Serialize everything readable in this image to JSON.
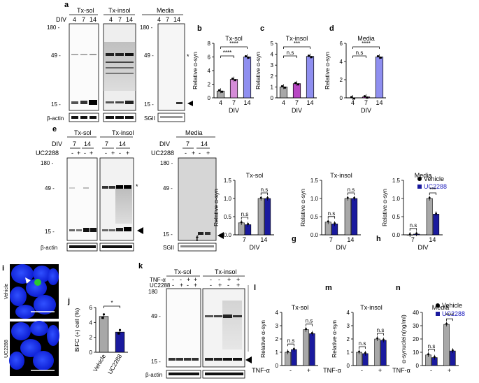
{
  "panel_letters": {
    "a": "a",
    "b": "b",
    "c": "c",
    "d": "d",
    "e": "e",
    "f": "f",
    "g": "g",
    "h": "h",
    "i": "i",
    "j": "j",
    "k": "k",
    "l": "l",
    "m": "m",
    "n": "n"
  },
  "common": {
    "div_label": "DIV",
    "relative_asyn": "Relative α-syn",
    "actin": "β-actin",
    "sgii": "SGII",
    "uc2288": "UC2288",
    "tnf": "TNF-α",
    "minus": "-",
    "plus": "+",
    "ns": "n.s",
    "star1": "*",
    "star3": "***",
    "star4": "****"
  },
  "colors": {
    "grey": "#a8a8a8",
    "violet_light": "#d58cd8",
    "violet": "#b847c4",
    "lavender": "#8f8ff0",
    "navy": "#1a1a9e",
    "blue_text": "#1f1fbf",
    "micro_bg": "#000000",
    "nucleus": "#1a33ff",
    "green": "#29c92e"
  },
  "a": {
    "groups": [
      "Tx-sol",
      "Tx-insol",
      "Media"
    ],
    "div_values": [
      "4",
      "7",
      "14"
    ],
    "mw": [
      "180 -",
      "49 -",
      "15 -"
    ],
    "mw_media": [
      "180 -",
      "49 -",
      "15 -"
    ],
    "asterisk": "*"
  },
  "e": {
    "groups": [
      "Tx-sol",
      "Tx-insol",
      "Media"
    ],
    "div_values": [
      "7",
      "14"
    ],
    "signs": [
      "-",
      "+",
      "-",
      "+"
    ],
    "mw": [
      "180 -",
      "49 -",
      "15 -"
    ],
    "asterisk": "*"
  },
  "k": {
    "groups": [
      "Tx-sol",
      "Tx-insol"
    ],
    "tnf_signs": [
      "-",
      "-",
      "+",
      "+"
    ],
    "uc_signs": [
      "-",
      "+",
      "-",
      "+"
    ],
    "mw": [
      "180",
      "49 -",
      "15 -"
    ]
  },
  "i": {
    "vehicle": "Vehicle",
    "uc": "UC2288"
  },
  "j": {
    "ylabel": "BiFC (+) cell (%)",
    "categories": [
      "Vehicle",
      "UC2288"
    ],
    "yticks": [
      "0",
      "2",
      "4",
      "6"
    ],
    "sig": "*"
  },
  "legend": {
    "vehicle": "Vehicle",
    "uc": "UC2288"
  },
  "chart_data": [
    {
      "panel": "b",
      "type": "bar",
      "title": "Tx-sol",
      "xlabel": "DIV",
      "ylabel": "Relative α-syn",
      "categories": [
        "4",
        "7",
        "14"
      ],
      "values": [
        1.0,
        2.7,
        6.0
      ],
      "ylim": [
        0,
        8
      ],
      "yticks": [
        "0",
        "2",
        "4",
        "6",
        "8"
      ],
      "annotations": [
        "****",
        "****"
      ]
    },
    {
      "panel": "c",
      "type": "bar",
      "title": "Tx-insol",
      "xlabel": "DIV",
      "ylabel": "Relative α-syn",
      "categories": [
        "4",
        "7",
        "14"
      ],
      "values": [
        1.0,
        1.3,
        3.8
      ],
      "ylim": [
        0,
        5
      ],
      "yticks": [
        "0",
        "1",
        "2",
        "3",
        "4",
        "5"
      ],
      "annotations": [
        "n.s",
        "***"
      ]
    },
    {
      "panel": "d",
      "type": "bar",
      "title": "Media",
      "xlabel": "DIV",
      "ylabel": "Relative α-syn",
      "categories": [
        "4",
        "7",
        "14"
      ],
      "values": [
        0.0,
        0.1,
        4.5
      ],
      "ylim": [
        0,
        6
      ],
      "yticks": [
        "0",
        "2",
        "4",
        "6"
      ],
      "annotations": [
        "n.s",
        "****"
      ]
    },
    {
      "panel": "f",
      "type": "bar",
      "title": "Tx-sol",
      "xlabel": "DIV",
      "ylabel": "Relative α-syn",
      "categories": [
        "7",
        "14"
      ],
      "series": [
        {
          "name": "Vehicle",
          "values": [
            0.33,
            1.0
          ]
        },
        {
          "name": "UC2288",
          "values": [
            0.28,
            1.0
          ]
        }
      ],
      "ylim": [
        0,
        1.5
      ],
      "yticks": [
        "0.0",
        "0.5",
        "1.0",
        "1.5"
      ],
      "annotations": [
        "n.s",
        "n.s"
      ]
    },
    {
      "panel": "g",
      "type": "bar",
      "title": "Tx-insol",
      "xlabel": "DIV",
      "ylabel": "Relative α-syn",
      "categories": [
        "7",
        "14"
      ],
      "series": [
        {
          "name": "Vehicle",
          "values": [
            0.35,
            1.0
          ]
        },
        {
          "name": "UC2288",
          "values": [
            0.3,
            1.0
          ]
        }
      ],
      "ylim": [
        0,
        1.5
      ],
      "yticks": [
        "0.0",
        "0.5",
        "1.0",
        "1.5"
      ],
      "annotations": [
        "n.s",
        "n.s"
      ]
    },
    {
      "panel": "h",
      "type": "bar",
      "title": "Media",
      "xlabel": "DIV",
      "ylabel": "Relative α-syn",
      "categories": [
        "7",
        "14"
      ],
      "series": [
        {
          "name": "Vehicle",
          "values": [
            0.0,
            1.0
          ]
        },
        {
          "name": "UC2288",
          "values": [
            0.02,
            0.57
          ]
        }
      ],
      "ylim": [
        0,
        1.5
      ],
      "yticks": [
        "0.0",
        "0.5",
        "1.0",
        "1.5"
      ],
      "annotations": [
        "n.s",
        "***"
      ]
    },
    {
      "panel": "j",
      "type": "bar",
      "title": "",
      "xlabel": "",
      "ylabel": "BiFC (+) cell (%)",
      "categories": [
        "Vehicle",
        "UC2288"
      ],
      "values": [
        4.8,
        2.7
      ],
      "ylim": [
        0,
        6
      ],
      "yticks": [
        "0",
        "2",
        "4",
        "6"
      ],
      "annotations": [
        "*"
      ]
    },
    {
      "panel": "l",
      "type": "bar",
      "title": "Tx-sol",
      "xlabel": "TNF-α",
      "ylabel": "Relative α-syn",
      "categories": [
        "-",
        "+"
      ],
      "series": [
        {
          "name": "Vehicle",
          "values": [
            1.0,
            2.7
          ]
        },
        {
          "name": "UC2288",
          "values": [
            1.2,
            2.4
          ]
        }
      ],
      "ylim": [
        0,
        4
      ],
      "yticks": [
        "0",
        "1",
        "2",
        "3",
        "4"
      ],
      "annotations": [
        "n.s",
        "n.s"
      ]
    },
    {
      "panel": "m",
      "type": "bar",
      "title": "Tx-insol",
      "xlabel": "TNF-α",
      "ylabel": "Relative α-syn",
      "categories": [
        "-",
        "+"
      ],
      "series": [
        {
          "name": "Vehicle",
          "values": [
            1.0,
            2.0
          ]
        },
        {
          "name": "UC2288",
          "values": [
            0.9,
            1.9
          ]
        }
      ],
      "ylim": [
        0,
        4
      ],
      "yticks": [
        "0",
        "1",
        "2",
        "3",
        "4"
      ],
      "annotations": [
        "n.s",
        "n.s"
      ]
    },
    {
      "panel": "n",
      "type": "bar",
      "title": "Media",
      "xlabel": "TNF-α",
      "ylabel": "α-synuclein(ng/ml)",
      "categories": [
        "-",
        "+"
      ],
      "series": [
        {
          "name": "Vehicle",
          "values": [
            8,
            31
          ]
        },
        {
          "name": "UC2288",
          "values": [
            6,
            11
          ]
        }
      ],
      "ylim": [
        0,
        40
      ],
      "yticks": [
        "0",
        "10",
        "20",
        "30",
        "40"
      ],
      "annotations": [
        "n.s",
        "****"
      ]
    }
  ]
}
